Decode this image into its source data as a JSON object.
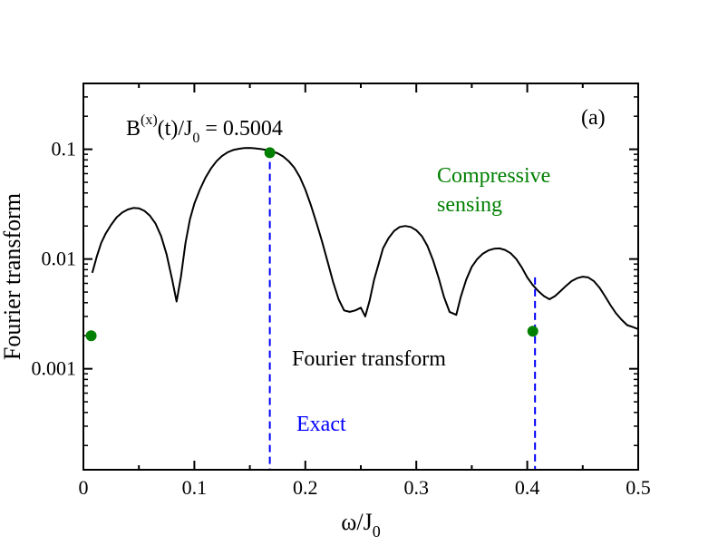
{
  "chart_data": {
    "type": "line",
    "title": "",
    "panel_label": "(a)",
    "xlabel": {
      "base": "ω/J",
      "sub": "0"
    },
    "ylabel": "Fourier transform",
    "xlim": [
      0,
      0.5
    ],
    "ylim_log10": [
      -3.92,
      -0.4
    ],
    "yscale": "log",
    "x_ticks": [
      0,
      0.1,
      0.2,
      0.3,
      0.4,
      0.5
    ],
    "x_tick_labels": [
      "0",
      "0.1",
      "0.2",
      "0.3",
      "0.4",
      "0.5"
    ],
    "y_ticks": [
      0.001,
      0.01,
      0.1
    ],
    "y_tick_labels": [
      "0.001",
      "0.01",
      "0.1"
    ],
    "field_annotation": {
      "b": "B",
      "sup": "(x)",
      "mid": "(t)/J",
      "sub": "0",
      "rest": " = 0.5004"
    },
    "annotations": {
      "compressive_line1": "Compressive",
      "compressive_line2": "sensing",
      "fourier": "Fourier transform",
      "exact": "Exact"
    },
    "colors": {
      "fourier": "#000000",
      "exact": "#0000ff",
      "compressive": "#008000"
    },
    "series": [
      {
        "name": "Fourier transform",
        "style": "solid-line",
        "x": [
          0.008,
          0.012,
          0.016,
          0.02,
          0.025,
          0.03,
          0.035,
          0.04,
          0.045,
          0.05,
          0.055,
          0.06,
          0.065,
          0.07,
          0.075,
          0.08,
          0.084,
          0.088,
          0.092,
          0.096,
          0.1,
          0.105,
          0.11,
          0.115,
          0.12,
          0.125,
          0.13,
          0.135,
          0.14,
          0.145,
          0.15,
          0.155,
          0.16,
          0.165,
          0.17,
          0.175,
          0.18,
          0.185,
          0.19,
          0.195,
          0.2,
          0.205,
          0.21,
          0.215,
          0.22,
          0.225,
          0.23,
          0.235,
          0.24,
          0.245,
          0.25,
          0.254,
          0.258,
          0.262,
          0.266,
          0.27,
          0.275,
          0.28,
          0.285,
          0.29,
          0.295,
          0.3,
          0.305,
          0.31,
          0.315,
          0.32,
          0.325,
          0.33,
          0.336,
          0.34,
          0.345,
          0.35,
          0.355,
          0.36,
          0.365,
          0.37,
          0.375,
          0.38,
          0.385,
          0.39,
          0.395,
          0.4,
          0.405,
          0.41,
          0.415,
          0.42,
          0.425,
          0.43,
          0.435,
          0.44,
          0.445,
          0.45,
          0.455,
          0.46,
          0.465,
          0.47,
          0.475,
          0.48,
          0.485,
          0.49,
          0.495,
          0.5
        ],
        "y": [
          0.0075,
          0.0105,
          0.014,
          0.017,
          0.0205,
          0.024,
          0.0265,
          0.0283,
          0.0292,
          0.029,
          0.0275,
          0.0248,
          0.021,
          0.0162,
          0.011,
          0.0065,
          0.0041,
          0.007,
          0.014,
          0.023,
          0.032,
          0.043,
          0.055,
          0.067,
          0.078,
          0.087,
          0.094,
          0.0985,
          0.101,
          0.1025,
          0.103,
          0.102,
          0.1005,
          0.0985,
          0.096,
          0.092,
          0.086,
          0.078,
          0.068,
          0.056,
          0.043,
          0.031,
          0.0215,
          0.0145,
          0.0095,
          0.0062,
          0.0043,
          0.0034,
          0.0033,
          0.0034,
          0.0036,
          0.003,
          0.0042,
          0.0065,
          0.009,
          0.0125,
          0.0155,
          0.018,
          0.0196,
          0.02,
          0.0196,
          0.0183,
          0.0162,
          0.0132,
          0.0098,
          0.0068,
          0.0045,
          0.0033,
          0.0031,
          0.0045,
          0.0065,
          0.0085,
          0.01,
          0.0112,
          0.012,
          0.0124,
          0.0125,
          0.0121,
          0.0113,
          0.01,
          0.0084,
          0.0068,
          0.0058,
          0.0051,
          0.0046,
          0.0043,
          0.0046,
          0.0051,
          0.0057,
          0.0063,
          0.0067,
          0.0069,
          0.0068,
          0.0063,
          0.0055,
          0.0046,
          0.0038,
          0.0032,
          0.0028,
          0.0025,
          0.0024,
          0.0023
        ]
      },
      {
        "name": "Exact",
        "style": "dashed-vertical",
        "x": [
          0.168,
          0.407
        ],
        "y": [
          0.098,
          0.0068
        ]
      },
      {
        "name": "Compressive sensing",
        "style": "marker",
        "x": [
          0.007,
          0.168,
          0.405
        ],
        "y": [
          0.002,
          0.093,
          0.0022
        ]
      }
    ]
  }
}
